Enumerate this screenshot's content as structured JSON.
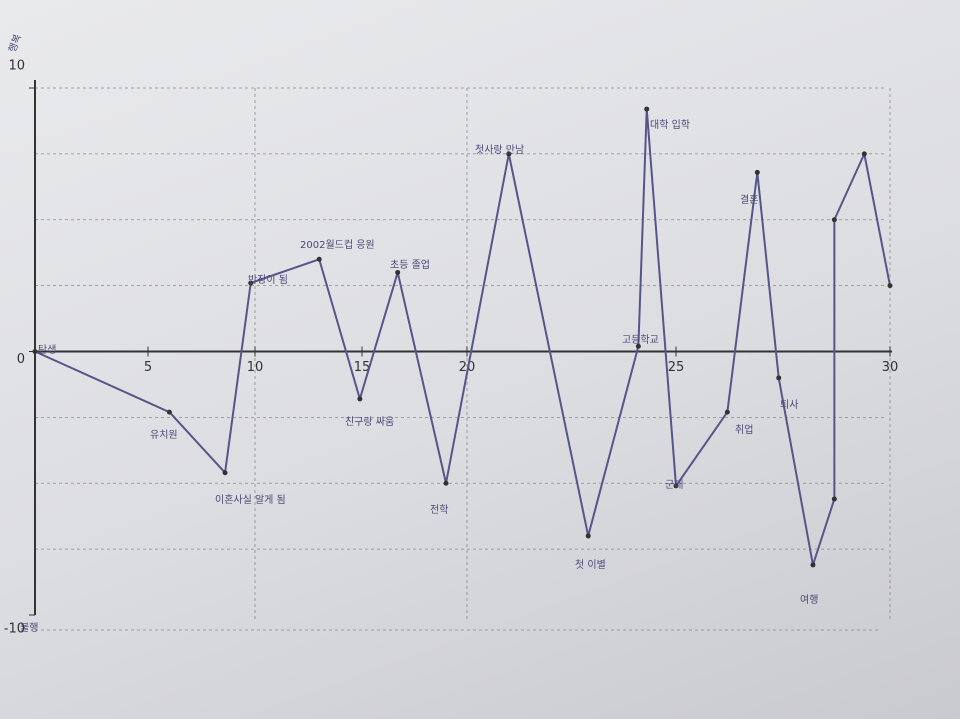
{
  "chart_data": {
    "type": "line",
    "y_top_label": "행복",
    "y_bottom_label": "불행",
    "x": [
      0,
      6,
      8.6,
      9.8,
      13,
      14.9,
      16.7,
      19,
      21,
      22.9,
      24.1,
      24.3,
      25,
      26.2,
      26.9,
      27.4,
      28.2,
      28.7,
      28.7,
      29.4,
      30
    ],
    "series": [
      {
        "color": "#55558a",
        "values": [
          0,
          -2.3,
          -4.6,
          2.6,
          3.5,
          -1.8,
          3.0,
          -5,
          7.5,
          -7,
          0.2,
          9.2,
          -5.1,
          -2.3,
          6.8,
          -1,
          -8.1,
          -5.6,
          5,
          7.5,
          2.5
        ]
      }
    ],
    "xlim": [
      0,
      30
    ],
    "xticks": [
      5,
      10,
      15,
      20,
      25,
      30
    ],
    "ylim": [
      -10,
      10
    ],
    "yticks": [
      -10,
      0,
      10
    ],
    "grid": true,
    "annotations": [
      "탄생",
      "유치원",
      "이혼사실 알게 됨",
      "반장이 됨",
      "2002월드컵 응원",
      "친구랑 싸움",
      "초등 졸업",
      "전학",
      "첫사랑 만남",
      "첫 이별",
      "고등학교",
      "대학 입학",
      "군대",
      "취업",
      "결혼",
      "퇴사",
      "여행"
    ]
  }
}
